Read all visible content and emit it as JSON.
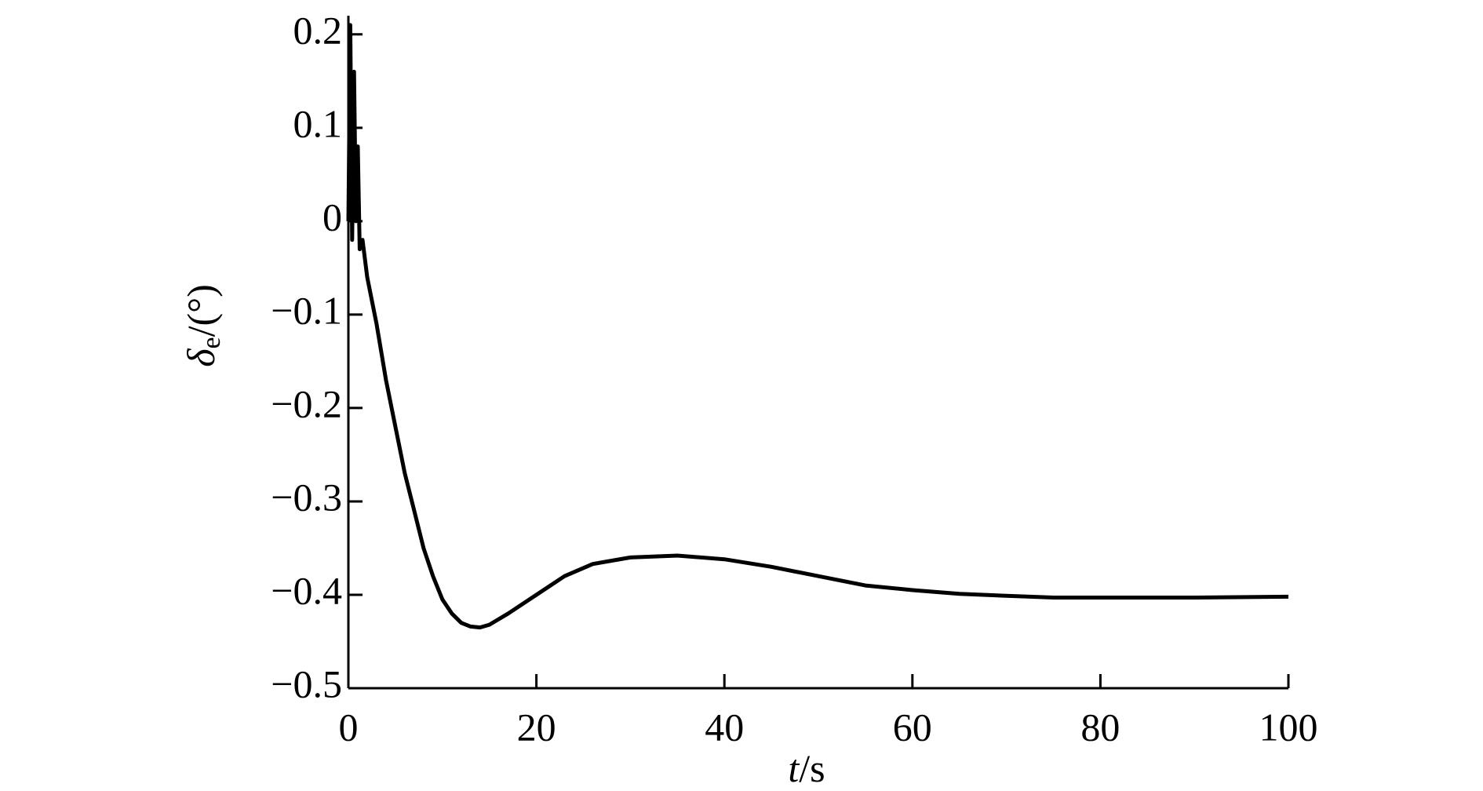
{
  "chart_data": {
    "type": "line",
    "x_label": {
      "symbol": "t",
      "unit": "/s"
    },
    "y_label": {
      "symbol": "δ",
      "subscript": "e",
      "unit": "/(°)"
    },
    "series": [
      {
        "color": "#000000",
        "x": [
          0,
          0.2,
          0.4,
          0.6,
          0.8,
          1.0,
          1.2,
          1.5,
          2,
          3,
          4,
          5,
          6,
          7,
          8,
          9,
          10,
          11,
          12,
          13,
          14,
          15,
          17,
          20,
          23,
          26,
          30,
          35,
          40,
          45,
          50,
          55,
          60,
          65,
          70,
          75,
          80,
          90,
          100
        ],
        "values": [
          0,
          0.21,
          -0.02,
          0.16,
          0.0,
          0.08,
          -0.03,
          -0.02,
          -0.06,
          -0.11,
          -0.17,
          -0.22,
          -0.27,
          -0.31,
          -0.35,
          -0.38,
          -0.405,
          -0.42,
          -0.43,
          -0.434,
          -0.435,
          -0.432,
          -0.42,
          -0.4,
          -0.38,
          -0.367,
          -0.36,
          -0.358,
          -0.362,
          -0.37,
          -0.38,
          -0.39,
          -0.395,
          -0.399,
          -0.401,
          -0.403,
          -0.403,
          -0.403,
          -0.402
        ]
      }
    ],
    "xlim": [
      0,
      100
    ],
    "xticks": [
      0,
      20,
      40,
      60,
      80,
      100
    ],
    "ylim": [
      -0.5,
      0.22
    ],
    "yticks": [
      {
        "value": -0.5,
        "label": "−0.5"
      },
      {
        "value": -0.4,
        "label": "−0.4"
      },
      {
        "value": -0.3,
        "label": "−0.3"
      },
      {
        "value": -0.2,
        "label": "−0.2"
      },
      {
        "value": -0.1,
        "label": "−0.1"
      },
      0,
      0.1,
      0.2
    ]
  }
}
